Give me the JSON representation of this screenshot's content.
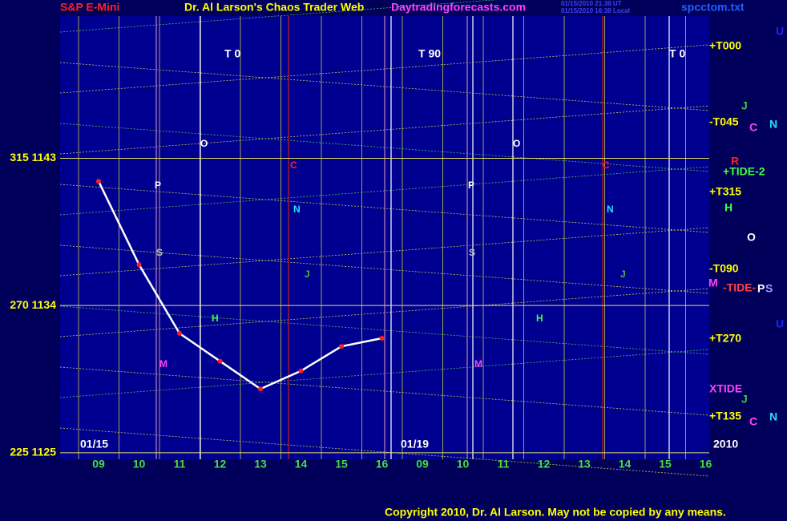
{
  "header": {
    "market": "S&P E-Mini",
    "title": "Dr. Al Larson's Chaos Trader Web",
    "site": "Daytradingforecasts.com",
    "stamp_ut": "01/15/2010 21:38 UT",
    "stamp_local": "01/15/2010 16:38 Local",
    "file": "spcctom.txt"
  },
  "chart_data": {
    "type": "line",
    "categories": [
      "09",
      "10",
      "11",
      "12",
      "13",
      "14",
      "15",
      "16",
      "09",
      "10",
      "11",
      "12",
      "13",
      "14",
      "15",
      "16"
    ],
    "dates": [
      "01/15",
      "01/19",
      "2010"
    ],
    "series": [
      {
        "name": "S&P E-Mini",
        "color": "#ffffff",
        "values": [
          1141.6,
          1136.5,
          1132.3,
          1130.6,
          1128.9,
          1130.0,
          1131.5,
          1132.0,
          null,
          null,
          null,
          null,
          null,
          null,
          null,
          null
        ]
      }
    ],
    "ylim": [
      1124.6,
      1151.7
    ],
    "yticks": [
      {
        "value": 1125,
        "label": "225 1125"
      },
      {
        "value": 1134,
        "label": "270 1134"
      },
      {
        "value": 1143,
        "label": "315 1143"
      }
    ],
    "grid": true
  },
  "top_labels": [
    "T  0",
    "T  90",
    "T  0"
  ],
  "right_labels": [
    "+T000",
    "-T045",
    "+TIDE-2",
    "+T315",
    "-T090",
    "-TIDE-",
    "+T270",
    "XTIDE",
    "+T135"
  ],
  "right_letters": [
    "U",
    "J",
    "C",
    "N",
    "R",
    "H",
    "O",
    "P",
    "S",
    "M",
    "U",
    "J",
    "C",
    "N"
  ],
  "chart_letters": [
    "O",
    "P",
    "S",
    "H",
    "M",
    "C",
    "N",
    "J",
    "O",
    "P",
    "S",
    "H",
    "M",
    "C",
    "N",
    "J"
  ],
  "footer": "Copyright 2010, Dr. Al Larson. May not be copied by any means."
}
